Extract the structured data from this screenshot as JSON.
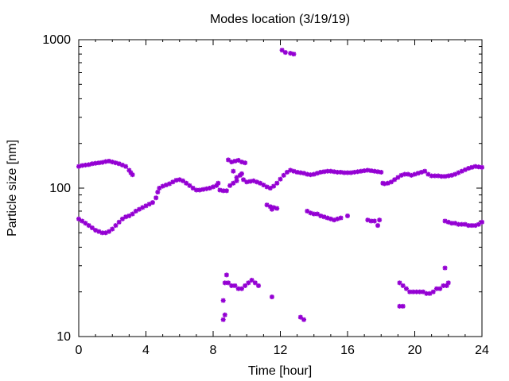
{
  "chart_data": {
    "type": "scatter",
    "title": "Modes location (3/19/19)",
    "xlabel": "Time [hour]",
    "ylabel": "Particle size [nm]",
    "xlim": [
      0,
      24
    ],
    "ylim": [
      10,
      1000
    ],
    "yscale": "log",
    "grid": false,
    "legend": "none",
    "marker_color": "#9400d3",
    "x_ticks": [
      "0",
      "4",
      "8",
      "12",
      "16",
      "20",
      "24"
    ],
    "y_ticks": [
      "10",
      "100",
      "1000"
    ],
    "series": [
      {
        "points": [
          [
            0.0,
            140
          ],
          [
            0.2,
            142
          ],
          [
            0.4,
            143
          ],
          [
            0.6,
            144
          ],
          [
            0.8,
            146
          ],
          [
            1.0,
            147
          ],
          [
            1.2,
            148
          ],
          [
            1.4,
            149
          ],
          [
            1.6,
            151
          ],
          [
            1.8,
            152
          ],
          [
            2.0,
            150
          ],
          [
            2.2,
            148
          ],
          [
            2.4,
            146
          ],
          [
            2.6,
            143
          ],
          [
            2.8,
            140
          ],
          [
            3.0,
            132
          ],
          [
            3.1,
            127
          ],
          [
            3.2,
            123
          ],
          [
            3.4,
            70
          ],
          [
            3.6,
            72
          ],
          [
            3.8,
            74
          ],
          [
            4.0,
            76
          ],
          [
            4.2,
            78
          ],
          [
            4.4,
            80
          ],
          [
            4.6,
            86
          ],
          [
            4.7,
            94
          ],
          [
            4.8,
            100
          ],
          [
            5.0,
            103
          ],
          [
            5.2,
            105
          ],
          [
            5.4,
            107
          ],
          [
            5.6,
            110
          ],
          [
            5.8,
            113
          ],
          [
            6.0,
            114
          ],
          [
            6.2,
            112
          ],
          [
            6.4,
            108
          ],
          [
            6.6,
            104
          ],
          [
            6.8,
            100
          ],
          [
            7.0,
            97
          ],
          [
            7.2,
            97
          ],
          [
            7.4,
            98
          ],
          [
            7.6,
            99
          ],
          [
            7.8,
            100
          ],
          [
            8.0,
            102
          ],
          [
            8.2,
            104
          ],
          [
            8.3,
            108
          ],
          [
            8.4,
            97
          ],
          [
            8.6,
            96
          ],
          [
            8.8,
            96
          ],
          [
            9.0,
            104
          ],
          [
            9.2,
            108
          ],
          [
            9.4,
            118
          ],
          [
            9.6,
            122
          ],
          [
            9.8,
            114
          ],
          [
            10.0,
            110
          ],
          [
            10.2,
            111
          ],
          [
            10.4,
            112
          ],
          [
            10.6,
            110
          ],
          [
            10.8,
            108
          ],
          [
            11.0,
            105
          ],
          [
            11.2,
            102
          ],
          [
            11.4,
            100
          ],
          [
            11.6,
            103
          ],
          [
            11.8,
            108
          ],
          [
            12.0,
            115
          ],
          [
            12.2,
            122
          ],
          [
            12.4,
            128
          ],
          [
            12.6,
            132
          ],
          [
            12.8,
            130
          ],
          [
            13.0,
            128
          ],
          [
            13.2,
            127
          ],
          [
            13.4,
            126
          ],
          [
            13.6,
            124
          ],
          [
            13.8,
            123
          ],
          [
            14.0,
            124
          ],
          [
            14.2,
            126
          ],
          [
            14.4,
            128
          ],
          [
            14.6,
            129
          ],
          [
            14.8,
            130
          ],
          [
            15.0,
            130
          ],
          [
            15.2,
            129
          ],
          [
            15.4,
            128
          ],
          [
            15.6,
            128
          ],
          [
            15.8,
            127
          ],
          [
            16.0,
            127
          ],
          [
            16.2,
            127
          ],
          [
            16.4,
            128
          ],
          [
            16.6,
            129
          ],
          [
            16.8,
            130
          ],
          [
            17.0,
            131
          ],
          [
            17.2,
            132
          ],
          [
            17.4,
            131
          ],
          [
            17.6,
            130
          ],
          [
            17.8,
            129
          ],
          [
            18.0,
            128
          ],
          [
            18.1,
            108
          ],
          [
            18.2,
            107
          ],
          [
            18.4,
            108
          ],
          [
            18.6,
            110
          ],
          [
            18.8,
            114
          ],
          [
            19.0,
            118
          ],
          [
            19.2,
            122
          ],
          [
            19.4,
            124
          ],
          [
            19.6,
            124
          ],
          [
            19.8,
            122
          ],
          [
            20.0,
            124
          ],
          [
            20.2,
            126
          ],
          [
            20.4,
            128
          ],
          [
            20.6,
            130
          ],
          [
            20.8,
            124
          ],
          [
            21.0,
            121
          ],
          [
            21.2,
            121
          ],
          [
            21.4,
            121
          ],
          [
            21.6,
            120
          ],
          [
            21.8,
            120
          ],
          [
            22.0,
            121
          ],
          [
            22.2,
            122
          ],
          [
            22.4,
            124
          ],
          [
            22.6,
            127
          ],
          [
            22.8,
            130
          ],
          [
            23.0,
            133
          ],
          [
            23.2,
            136
          ],
          [
            23.4,
            138
          ],
          [
            23.6,
            140
          ],
          [
            23.8,
            139
          ],
          [
            24.0,
            138
          ],
          [
            8.9,
            155
          ],
          [
            9.1,
            150
          ],
          [
            9.3,
            152
          ],
          [
            9.5,
            154
          ],
          [
            9.7,
            150
          ],
          [
            9.9,
            148
          ],
          [
            9.2,
            130
          ],
          [
            9.4,
            112
          ],
          [
            9.7,
            125
          ],
          [
            0.0,
            62
          ],
          [
            0.2,
            60
          ],
          [
            0.4,
            58
          ],
          [
            0.6,
            56
          ],
          [
            0.8,
            54
          ],
          [
            1.0,
            52
          ],
          [
            1.2,
            51
          ],
          [
            1.4,
            50
          ],
          [
            1.6,
            50
          ],
          [
            1.8,
            51
          ],
          [
            2.0,
            53
          ],
          [
            2.2,
            56
          ],
          [
            2.4,
            59
          ],
          [
            2.6,
            62
          ],
          [
            2.8,
            64
          ],
          [
            3.0,
            65
          ],
          [
            3.2,
            67
          ],
          [
            11.2,
            77
          ],
          [
            11.4,
            75
          ],
          [
            11.6,
            74
          ],
          [
            11.8,
            73
          ],
          [
            11.5,
            72
          ],
          [
            13.6,
            70
          ],
          [
            13.8,
            68
          ],
          [
            14.0,
            67
          ],
          [
            14.2,
            67
          ],
          [
            14.4,
            65
          ],
          [
            14.6,
            64
          ],
          [
            14.8,
            63
          ],
          [
            15.0,
            62
          ],
          [
            15.2,
            61
          ],
          [
            15.4,
            62
          ],
          [
            15.6,
            63
          ],
          [
            16.0,
            65
          ],
          [
            17.2,
            61
          ],
          [
            17.4,
            60
          ],
          [
            17.6,
            60
          ],
          [
            17.8,
            56
          ],
          [
            17.9,
            61
          ],
          [
            21.8,
            60
          ],
          [
            22.0,
            59
          ],
          [
            22.2,
            58
          ],
          [
            22.4,
            58
          ],
          [
            22.6,
            57
          ],
          [
            22.8,
            57
          ],
          [
            23.0,
            57
          ],
          [
            23.2,
            56
          ],
          [
            23.4,
            56
          ],
          [
            23.6,
            56
          ],
          [
            23.8,
            57
          ],
          [
            24.0,
            59
          ],
          [
            8.7,
            23
          ],
          [
            8.9,
            23
          ],
          [
            9.1,
            22
          ],
          [
            9.3,
            22
          ],
          [
            9.5,
            21
          ],
          [
            9.7,
            21
          ],
          [
            9.9,
            22
          ],
          [
            10.1,
            23
          ],
          [
            10.3,
            24
          ],
          [
            10.5,
            23
          ],
          [
            10.7,
            22
          ],
          [
            8.8,
            26
          ],
          [
            8.6,
            17.5
          ],
          [
            8.6,
            13
          ],
          [
            8.7,
            14
          ],
          [
            11.5,
            18.5
          ],
          [
            12.1,
            850
          ],
          [
            12.3,
            820
          ],
          [
            12.8,
            800
          ],
          [
            12.6,
            810
          ],
          [
            13.2,
            13.5
          ],
          [
            13.4,
            13
          ],
          [
            19.1,
            23
          ],
          [
            19.3,
            22
          ],
          [
            19.5,
            21
          ],
          [
            19.7,
            20
          ],
          [
            19.9,
            20
          ],
          [
            20.1,
            20
          ],
          [
            20.3,
            20
          ],
          [
            20.5,
            20
          ],
          [
            20.7,
            19.5
          ],
          [
            20.9,
            19.5
          ],
          [
            21.1,
            20
          ],
          [
            21.3,
            21
          ],
          [
            21.5,
            21
          ],
          [
            21.7,
            22
          ],
          [
            21.9,
            22
          ],
          [
            22.0,
            23
          ],
          [
            21.8,
            29
          ],
          [
            19.1,
            16
          ],
          [
            19.3,
            16
          ]
        ]
      }
    ]
  }
}
